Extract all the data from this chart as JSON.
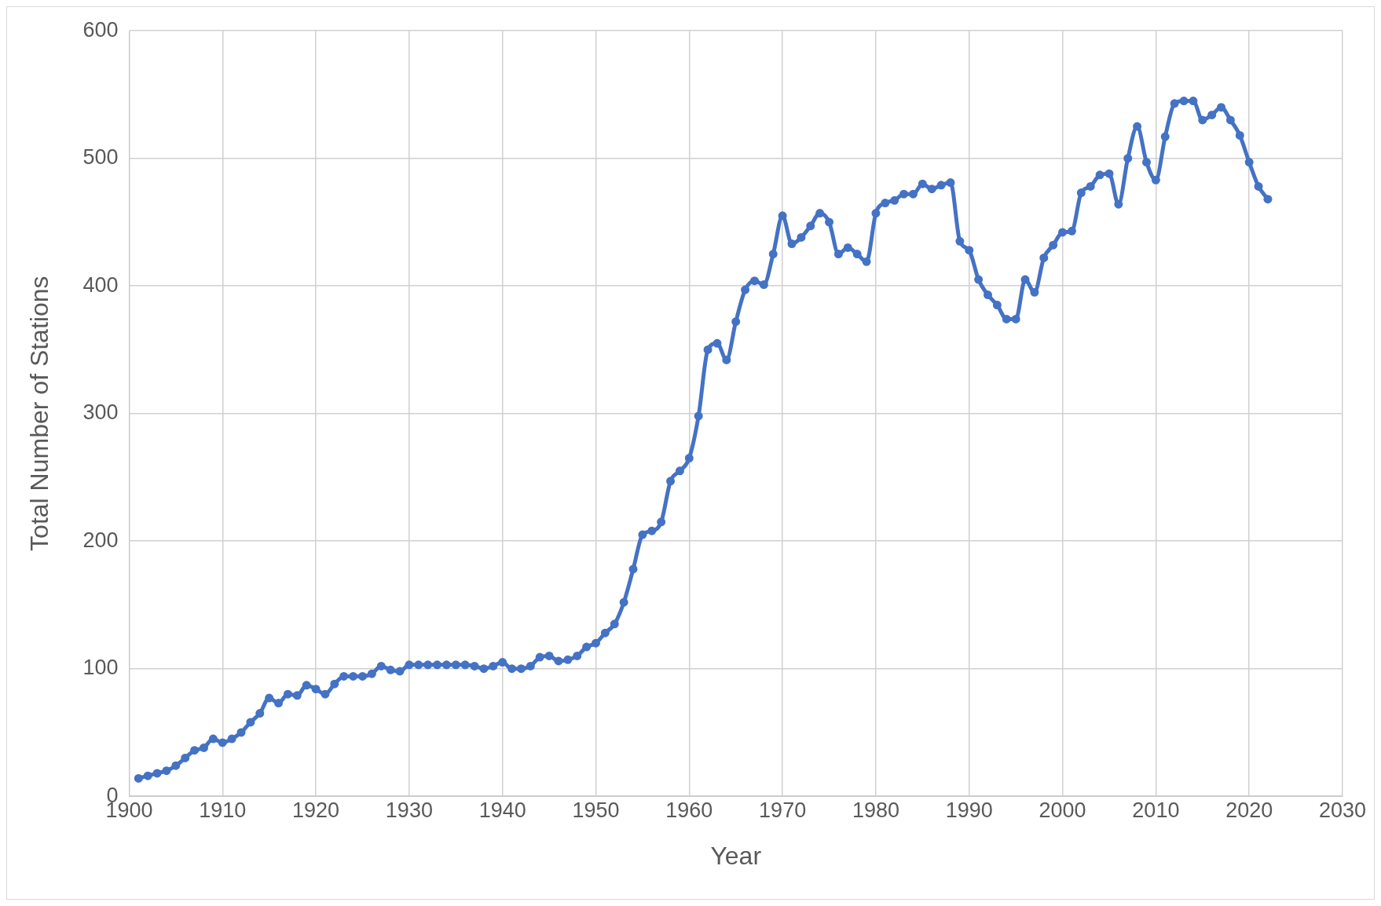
{
  "chart_data": {
    "type": "line",
    "xlabel": "Year",
    "ylabel": "Total Number of Stations",
    "x": [
      1901,
      1902,
      1903,
      1904,
      1905,
      1906,
      1907,
      1908,
      1909,
      1910,
      1911,
      1912,
      1913,
      1914,
      1915,
      1916,
      1917,
      1918,
      1919,
      1920,
      1921,
      1922,
      1923,
      1924,
      1925,
      1926,
      1927,
      1928,
      1929,
      1930,
      1931,
      1932,
      1933,
      1934,
      1935,
      1936,
      1937,
      1938,
      1939,
      1940,
      1941,
      1942,
      1943,
      1944,
      1945,
      1946,
      1947,
      1948,
      1949,
      1950,
      1951,
      1952,
      1953,
      1954,
      1955,
      1956,
      1957,
      1958,
      1959,
      1960,
      1961,
      1962,
      1963,
      1964,
      1965,
      1966,
      1967,
      1968,
      1969,
      1970,
      1971,
      1972,
      1973,
      1974,
      1975,
      1976,
      1977,
      1978,
      1979,
      1980,
      1981,
      1982,
      1983,
      1984,
      1985,
      1986,
      1987,
      1988,
      1989,
      1990,
      1991,
      1992,
      1993,
      1994,
      1995,
      1996,
      1997,
      1998,
      1999,
      2000,
      2001,
      2002,
      2003,
      2004,
      2005,
      2006,
      2007,
      2008,
      2009,
      2010,
      2011,
      2012,
      2013,
      2014,
      2015,
      2016,
      2017,
      2018,
      2019,
      2020,
      2021,
      2022
    ],
    "series": [
      {
        "color": "#4472c4",
        "values": [
          14,
          16,
          18,
          20,
          24,
          30,
          36,
          38,
          45,
          42,
          45,
          50,
          58,
          65,
          77,
          73,
          80,
          79,
          87,
          84,
          80,
          88,
          94,
          94,
          94,
          96,
          102,
          99,
          98,
          103,
          103,
          103,
          103,
          103,
          103,
          103,
          102,
          100,
          102,
          105,
          100,
          100,
          102,
          109,
          110,
          106,
          107,
          110,
          117,
          120,
          128,
          135,
          152,
          178,
          205,
          208,
          215,
          247,
          255,
          265,
          298,
          350,
          355,
          342,
          372,
          397,
          404,
          401,
          425,
          455,
          433,
          438,
          447,
          457,
          450,
          425,
          430,
          425,
          419,
          457,
          465,
          467,
          472,
          472,
          480,
          476,
          479,
          481,
          435,
          428,
          405,
          393,
          385,
          374,
          374,
          405,
          395,
          422,
          432,
          442,
          443,
          473,
          478,
          487,
          488,
          464,
          500,
          525,
          497,
          483,
          517,
          543,
          545,
          545,
          530,
          534,
          540,
          530,
          518,
          497,
          478,
          468
        ]
      }
    ],
    "xlim": [
      1900,
      2030
    ],
    "xticks": [
      1900,
      1910,
      1920,
      1930,
      1940,
      1950,
      1960,
      1970,
      1980,
      1990,
      2000,
      2010,
      2020,
      2030
    ],
    "ylim": [
      0,
      600
    ],
    "yticks": [
      0,
      100,
      200,
      300,
      400,
      500,
      600
    ],
    "grid": true,
    "legend": false,
    "marker": "circle",
    "line_style": "solid"
  }
}
